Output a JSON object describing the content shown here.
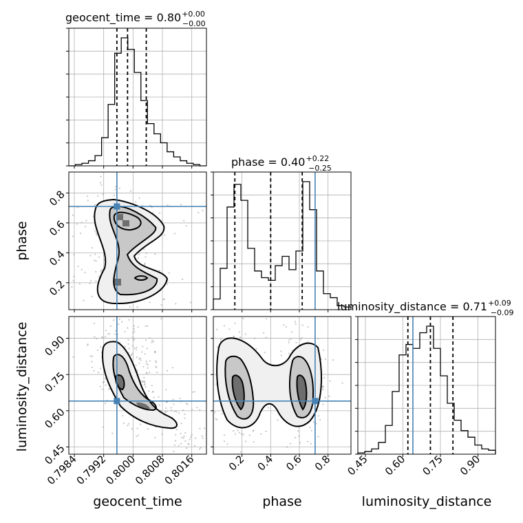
{
  "chart_data": {
    "type": "corner",
    "parameters": [
      {
        "name": "geocent_time",
        "label": "geocent_time",
        "ticks": [
          0.7984,
          0.7992,
          0.8,
          0.8008,
          0.8016
        ],
        "tick_labels": [
          "0.7984",
          "0.7992",
          "0.8000",
          "0.8008",
          "0.8016"
        ],
        "range": [
          0.79825,
          0.802
        ],
        "truth": 0.79956,
        "title": {
          "main": "geocent_time = 0.80",
          "sup": "+0.00",
          "sub": "−0.00"
        },
        "quantiles": [
          0.79956,
          0.79985,
          0.80036
        ],
        "hist": [
          0,
          1,
          2,
          4,
          8,
          22,
          48,
          88,
          100,
          91,
          73,
          51,
          33,
          25,
          18,
          11,
          7,
          4,
          2,
          1,
          0
        ]
      },
      {
        "name": "phase",
        "label": "phase",
        "ticks": [
          0.2,
          0.4,
          0.6,
          0.8
        ],
        "tick_labels": [
          "0.2",
          "0.4",
          "0.6",
          "0.8"
        ],
        "range": [
          0.0,
          0.96
        ],
        "truth": 0.71,
        "title": {
          "main": "phase = 0.40",
          "sup": "+0.22",
          "sub": "−0.25"
        },
        "quantiles": [
          0.15,
          0.4,
          0.62
        ],
        "hist": [
          8,
          31,
          77,
          94,
          82,
          46,
          29,
          24,
          22,
          33,
          40,
          30,
          44,
          96,
          75,
          29,
          12,
          9,
          3,
          2
        ]
      },
      {
        "name": "luminosity_distance",
        "label": "luminosity_distance",
        "ticks": [
          0.45,
          0.6,
          0.75,
          0.9
        ],
        "tick_labels": [
          "0.45",
          "0.60",
          "0.75",
          "0.90"
        ],
        "range": [
          0.42,
          0.97
        ],
        "truth": 0.64,
        "title": {
          "main": "luminosity_distance = 0.71",
          "sup": "+0.09",
          "sub": "−0.09"
        },
        "quantiles": [
          0.62,
          0.71,
          0.8
        ],
        "hist": [
          1,
          2,
          4,
          9,
          22,
          48,
          76,
          84,
          81,
          93,
          98,
          81,
          60,
          39,
          26,
          18,
          13,
          7,
          4,
          3
        ]
      }
    ],
    "pairs": [
      {
        "x": "geocent_time",
        "y": "phase",
        "ylim": [
          0.02,
          0.94
        ]
      },
      {
        "x": "geocent_time",
        "y": "luminosity_distance",
        "ylim": [
          0.42,
          0.99
        ]
      },
      {
        "x": "phase",
        "y": "luminosity_distance",
        "ylim": [
          0.42,
          0.99
        ]
      }
    ],
    "grid": true
  }
}
